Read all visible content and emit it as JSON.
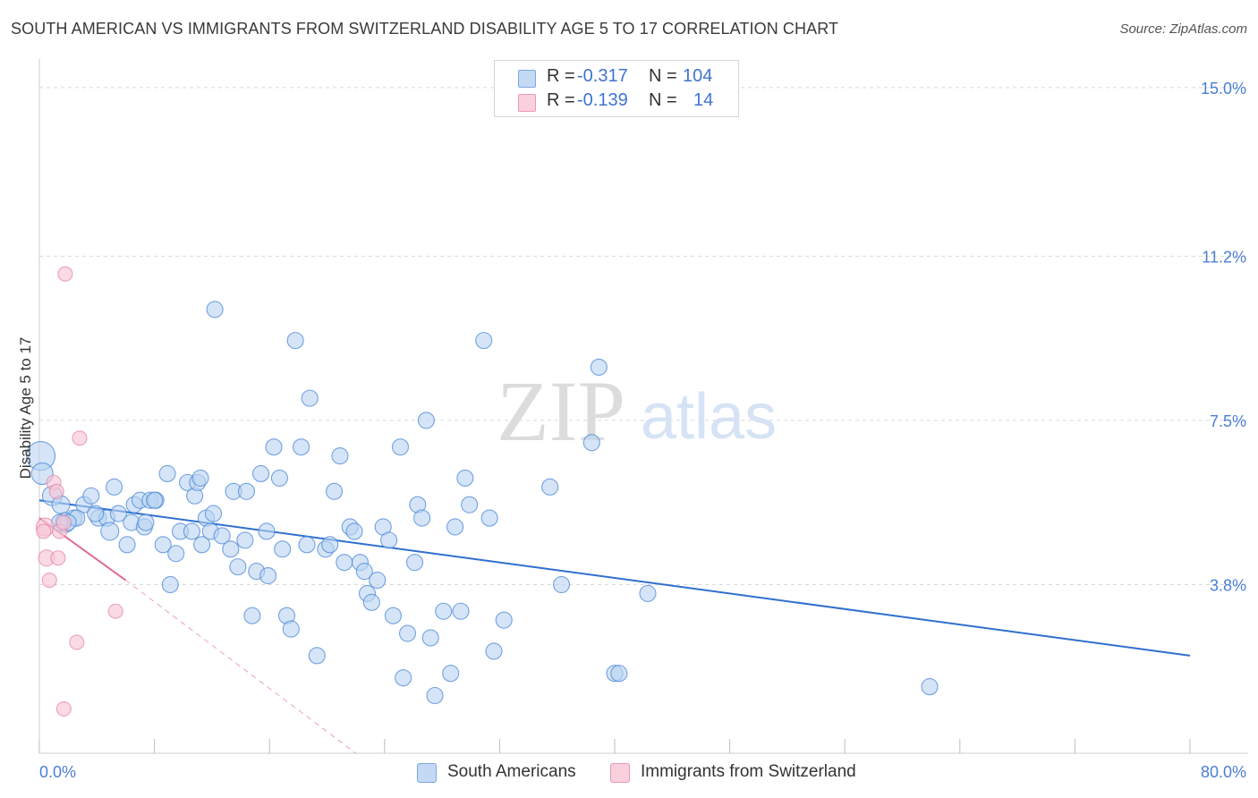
{
  "title": "SOUTH AMERICAN VS IMMIGRANTS FROM SWITZERLAND DISABILITY AGE 5 TO 17 CORRELATION CHART",
  "source": "Source: ZipAtlas.com",
  "watermark": {
    "zip": "ZIP",
    "atlas": "atlas"
  },
  "stats": [
    {
      "r_label": "R = ",
      "r_value": "-0.317",
      "n_label": "N = ",
      "n_value": "104",
      "color": "#9fc3ef"
    },
    {
      "r_label": "R = ",
      "r_value": "-0.139",
      "n_label": "N = ",
      "n_value": "14",
      "color": "#f4b6c8"
    }
  ],
  "legend": [
    {
      "label": "South Americans",
      "color": "#9fc3ef"
    },
    {
      "label": "Immigrants from Switzerland",
      "color": "#f4b6c8"
    }
  ],
  "chart_data": {
    "type": "scatter",
    "xlabel": "",
    "ylabel": "Disability Age 5 to 17",
    "xlim": [
      0,
      80
    ],
    "ylim": [
      0,
      15.4
    ],
    "x_tick_labels": [
      "0.0%",
      "80.0%"
    ],
    "y_ticks": [
      3.8,
      7.5,
      11.2,
      15.0
    ],
    "y_tick_labels": [
      "3.8%",
      "7.5%",
      "11.2%",
      "15.0%"
    ],
    "grid": true,
    "colors": {
      "blue": "#4a86d8",
      "blue_fill": "#b9d3f2",
      "pink": "#e0709a",
      "pink_fill": "#f7c6d5"
    },
    "series": [
      {
        "name": "South Americans",
        "trend": {
          "x": [
            0.0,
            80.0
          ],
          "y": [
            5.7,
            2.2
          ]
        },
        "points": [
          [
            0.1,
            6.7,
            16
          ],
          [
            0.2,
            6.3,
            12
          ],
          [
            0.9,
            5.8,
            11
          ],
          [
            1.5,
            5.6,
            10
          ],
          [
            1.8,
            5.2,
            11
          ],
          [
            2.4,
            5.3,
            9
          ],
          [
            3.1,
            5.6,
            9
          ],
          [
            3.6,
            5.8,
            9
          ],
          [
            2.6,
            5.3,
            9
          ],
          [
            4.1,
            5.3,
            9
          ],
          [
            4.7,
            5.3,
            9
          ],
          [
            4.9,
            5.0,
            10
          ],
          [
            5.2,
            6.0,
            9
          ],
          [
            5.5,
            5.4,
            9
          ],
          [
            6.1,
            4.7,
            9
          ],
          [
            6.4,
            5.2,
            9
          ],
          [
            6.6,
            5.6,
            9
          ],
          [
            7.3,
            5.1,
            9
          ],
          [
            7.0,
            5.7,
            9
          ],
          [
            7.7,
            5.7,
            9
          ],
          [
            8.1,
            5.7,
            9
          ],
          [
            8.6,
            4.7,
            9
          ],
          [
            8.9,
            6.3,
            9
          ],
          [
            9.1,
            3.8,
            9
          ],
          [
            9.5,
            4.5,
            9
          ],
          [
            9.8,
            5.0,
            9
          ],
          [
            10.3,
            6.1,
            9
          ],
          [
            10.6,
            5.0,
            9
          ],
          [
            10.8,
            5.8,
            9
          ],
          [
            11.0,
            6.1,
            9
          ],
          [
            11.3,
            4.7,
            9
          ],
          [
            11.6,
            5.3,
            9
          ],
          [
            11.9,
            5.0,
            9
          ],
          [
            12.1,
            5.4,
            9
          ],
          [
            12.2,
            10.0,
            9
          ],
          [
            12.7,
            4.9,
            9
          ],
          [
            13.3,
            4.6,
            9
          ],
          [
            13.5,
            5.9,
            9
          ],
          [
            13.8,
            4.2,
            9
          ],
          [
            14.3,
            4.8,
            9
          ],
          [
            14.4,
            5.9,
            9
          ],
          [
            14.8,
            3.1,
            9
          ],
          [
            15.1,
            4.1,
            9
          ],
          [
            15.4,
            6.3,
            9
          ],
          [
            15.8,
            5.0,
            9
          ],
          [
            15.9,
            4.0,
            9
          ],
          [
            16.3,
            6.9,
            9
          ],
          [
            16.7,
            6.2,
            9
          ],
          [
            16.9,
            4.6,
            9
          ],
          [
            17.2,
            3.1,
            9
          ],
          [
            17.5,
            2.8,
            9
          ],
          [
            17.8,
            9.3,
            9
          ],
          [
            18.2,
            6.9,
            9
          ],
          [
            18.6,
            4.7,
            9
          ],
          [
            18.8,
            8.0,
            9
          ],
          [
            19.3,
            2.2,
            9
          ],
          [
            19.9,
            4.6,
            9
          ],
          [
            20.2,
            4.7,
            9
          ],
          [
            20.5,
            5.9,
            9
          ],
          [
            20.9,
            6.7,
            9
          ],
          [
            21.2,
            4.3,
            9
          ],
          [
            21.6,
            5.1,
            9
          ],
          [
            21.9,
            5.0,
            9
          ],
          [
            22.3,
            4.3,
            9
          ],
          [
            22.6,
            4.1,
            9
          ],
          [
            22.8,
            3.6,
            9
          ],
          [
            23.1,
            3.4,
            9
          ],
          [
            23.5,
            3.9,
            9
          ],
          [
            23.9,
            5.1,
            9
          ],
          [
            24.3,
            4.8,
            9
          ],
          [
            24.6,
            3.1,
            9
          ],
          [
            25.1,
            6.9,
            9
          ],
          [
            25.3,
            1.7,
            9
          ],
          [
            25.6,
            2.7,
            9
          ],
          [
            26.1,
            4.3,
            9
          ],
          [
            26.3,
            5.6,
            9
          ],
          [
            26.6,
            5.3,
            9
          ],
          [
            26.9,
            7.5,
            9
          ],
          [
            27.2,
            2.6,
            9
          ],
          [
            27.5,
            1.3,
            9
          ],
          [
            28.1,
            3.2,
            9
          ],
          [
            28.6,
            1.8,
            9
          ],
          [
            28.9,
            5.1,
            9
          ],
          [
            29.3,
            3.2,
            9
          ],
          [
            29.6,
            6.2,
            9
          ],
          [
            29.9,
            5.6,
            9
          ],
          [
            30.9,
            9.3,
            9
          ],
          [
            31.3,
            5.3,
            9
          ],
          [
            31.6,
            2.3,
            9
          ],
          [
            32.3,
            3.0,
            9
          ],
          [
            35.5,
            6.0,
            9
          ],
          [
            36.3,
            3.8,
            9
          ],
          [
            38.4,
            7.0,
            9
          ],
          [
            38.9,
            8.7,
            9
          ],
          [
            40.0,
            1.8,
            9
          ],
          [
            40.3,
            1.8,
            9
          ],
          [
            42.3,
            3.6,
            9
          ],
          [
            61.9,
            1.5,
            9
          ],
          [
            8.0,
            5.7,
            9
          ],
          [
            2.0,
            5.2,
            9
          ],
          [
            1.4,
            5.2,
            9
          ],
          [
            3.9,
            5.4,
            9
          ],
          [
            11.2,
            6.2,
            9
          ],
          [
            7.4,
            5.2,
            9
          ]
        ]
      },
      {
        "name": "Immigrants from Switzerland",
        "trend_solid": {
          "x": [
            0.0,
            6.0
          ],
          "y": [
            5.3,
            3.9
          ]
        },
        "trend_dashed": {
          "x": [
            6.0,
            22.0
          ],
          "y": [
            3.9,
            0.0
          ]
        },
        "points": [
          [
            0.4,
            5.1,
            10
          ],
          [
            0.3,
            5.0,
            8
          ],
          [
            0.5,
            4.4,
            9
          ],
          [
            0.7,
            3.9,
            8
          ],
          [
            1.0,
            6.1,
            8
          ],
          [
            1.2,
            5.9,
            8
          ],
          [
            1.3,
            4.4,
            8
          ],
          [
            1.4,
            5.0,
            8
          ],
          [
            1.7,
            5.2,
            8
          ],
          [
            1.8,
            10.8,
            8
          ],
          [
            2.6,
            2.5,
            8
          ],
          [
            2.8,
            7.1,
            8
          ],
          [
            5.3,
            3.2,
            8
          ],
          [
            1.7,
            1.0,
            8
          ]
        ]
      }
    ]
  }
}
